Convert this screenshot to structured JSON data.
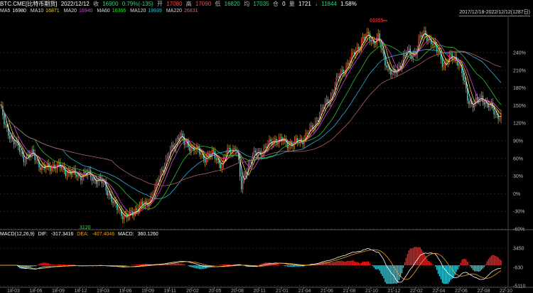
{
  "header": {
    "symbol": "BTC.CME[比特币期货]",
    "date": "2022/12/12",
    "close_label": "收",
    "close": "16900",
    "change": "0.79%(-135)",
    "open_label": "开",
    "open": "17080",
    "high_label": "高",
    "high": "17090",
    "low_label": "低",
    "low": "16820",
    "avg_label": "均",
    "avg": "17035",
    "pos_label": "仓",
    "pos": "0",
    "vol_label": "量",
    "vol": "1721",
    "amt_label": "↓",
    "amt": "11844",
    "pct": "1.58%"
  },
  "ma_line": [
    {
      "label": "MA5",
      "value": "16980",
      "color": "#ffffff"
    },
    {
      "label": "MA10",
      "value": "16871",
      "color": "#f0d020"
    },
    {
      "label": "MA20",
      "value": "16940",
      "color": "#e040e0"
    },
    {
      "label": "MA60",
      "value": "16366",
      "color": "#30e030"
    },
    {
      "label": "MA120",
      "value": "19939",
      "color": "#30c0e0"
    },
    {
      "label": "MA220",
      "value": "26831",
      "color": "#c07070"
    }
  ],
  "range_label": "2017/12/18-2022/12/12(1287日)",
  "macd": {
    "title": "MACD(12,26,9)",
    "dif_label": "DIF:",
    "dif": "-317.3416",
    "dea_label": "DEA:",
    "dea": "-407.4046",
    "macd_label": "MACD:",
    "macd": "360.1260"
  },
  "chart_data": {
    "type": "candlestick",
    "y_axis_labels": [
      "240%",
      "210%",
      "180%",
      "150%",
      "120%",
      "90%",
      "60%",
      "30%",
      "0%",
      "-30%",
      "-60%"
    ],
    "macd_axis_labels": [
      "3450",
      "-630",
      "-5110"
    ],
    "x_labels": [
      "18-03",
      "18-06",
      "18-09",
      "18-12",
      "19-03",
      "19-06",
      "19-09",
      "19-11",
      "20-02",
      "20-05",
      "20-08",
      "20-11",
      "21-01",
      "21-04",
      "21-06",
      "21-08",
      "21-10",
      "21-12",
      "22-02",
      "22-04",
      "22-06",
      "22-08",
      "22-10"
    ],
    "annotations": {
      "high": "69355",
      "low": "3120"
    },
    "price_path": [
      [
        0,
        20000
      ],
      [
        0.01,
        14000
      ],
      [
        0.03,
        11000
      ],
      [
        0.05,
        8500
      ],
      [
        0.07,
        9000
      ],
      [
        0.09,
        7000
      ],
      [
        0.11,
        7500
      ],
      [
        0.13,
        7200
      ],
      [
        0.15,
        6600
      ],
      [
        0.17,
        6400
      ],
      [
        0.19,
        6500
      ],
      [
        0.2,
        6000
      ],
      [
        0.22,
        5600
      ],
      [
        0.24,
        4000
      ],
      [
        0.26,
        3400
      ],
      [
        0.27,
        3200
      ],
      [
        0.29,
        3800
      ],
      [
        0.31,
        4000
      ],
      [
        0.33,
        5200
      ],
      [
        0.35,
        8000
      ],
      [
        0.37,
        10500
      ],
      [
        0.38,
        12800
      ],
      [
        0.39,
        10500
      ],
      [
        0.41,
        10000
      ],
      [
        0.43,
        8500
      ],
      [
        0.45,
        9000
      ],
      [
        0.47,
        7500
      ],
      [
        0.48,
        9300
      ],
      [
        0.5,
        10100
      ],
      [
        0.51,
        5000
      ],
      [
        0.52,
        7000
      ],
      [
        0.54,
        9000
      ],
      [
        0.56,
        9700
      ],
      [
        0.58,
        11500
      ],
      [
        0.6,
        11000
      ],
      [
        0.62,
        10500
      ],
      [
        0.64,
        11500
      ],
      [
        0.66,
        13500
      ],
      [
        0.68,
        18000
      ],
      [
        0.7,
        23000
      ],
      [
        0.72,
        33000
      ],
      [
        0.74,
        40000
      ],
      [
        0.75,
        47000
      ],
      [
        0.77,
        58000
      ],
      [
        0.78,
        62000
      ],
      [
        0.79,
        55000
      ],
      [
        0.8,
        59000
      ],
      [
        0.81,
        45000
      ],
      [
        0.82,
        37000
      ],
      [
        0.83,
        32000
      ],
      [
        0.84,
        35000
      ],
      [
        0.85,
        41000
      ],
      [
        0.86,
        47000
      ],
      [
        0.87,
        45000
      ],
      [
        0.88,
        48000
      ],
      [
        0.89,
        60000
      ],
      [
        0.9,
        64000
      ],
      [
        0.91,
        57000
      ],
      [
        0.92,
        50000
      ],
      [
        0.93,
        46000
      ],
      [
        0.94,
        37000
      ],
      [
        0.95,
        42000
      ],
      [
        0.96,
        44000
      ],
      [
        0.97,
        40000
      ],
      [
        0.98,
        30000
      ],
      [
        0.99,
        22000
      ],
      [
        1.0,
        20000
      ],
      [
        1.01,
        21000
      ],
      [
        1.02,
        23000
      ],
      [
        1.03,
        20000
      ],
      [
        1.04,
        19000
      ],
      [
        1.05,
        17000
      ],
      [
        1.06,
        16900
      ]
    ]
  }
}
